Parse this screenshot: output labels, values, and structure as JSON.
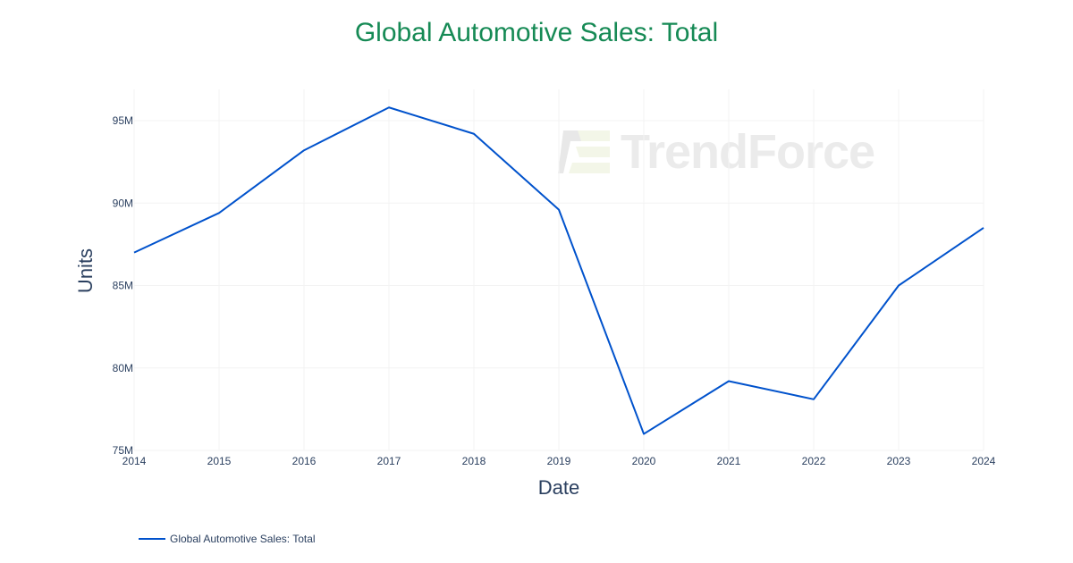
{
  "title": "Global Automotive Sales: Total",
  "watermark": "TrendForce",
  "legend": {
    "label": "Global Automotive Sales: Total",
    "color": "#0052cc"
  },
  "colors": {
    "title": "#168a55",
    "line": "#0052cc",
    "axis_text": "#2a3f5f",
    "grid": "#f3f3f3"
  },
  "chart_data": {
    "type": "line",
    "title": "Global Automotive Sales: Total",
    "xlabel": "Date",
    "ylabel": "Units",
    "x": [
      2014,
      2015,
      2016,
      2017,
      2018,
      2019,
      2020,
      2021,
      2022,
      2023,
      2024
    ],
    "series": [
      {
        "name": "Global Automotive Sales: Total",
        "values": [
          87.0,
          89.4,
          93.2,
          95.8,
          94.2,
          89.6,
          76.0,
          79.2,
          78.1,
          85.0,
          88.5
        ],
        "unit": "M"
      }
    ],
    "yticks": [
      "75M",
      "80M",
      "85M",
      "90M",
      "95M"
    ],
    "xticks": [
      "2014",
      "2015",
      "2016",
      "2017",
      "2018",
      "2019",
      "2020",
      "2021",
      "2022",
      "2023",
      "2024"
    ],
    "ylim": [
      75,
      97
    ],
    "grid": true,
    "legend_position": "bottom-left"
  }
}
